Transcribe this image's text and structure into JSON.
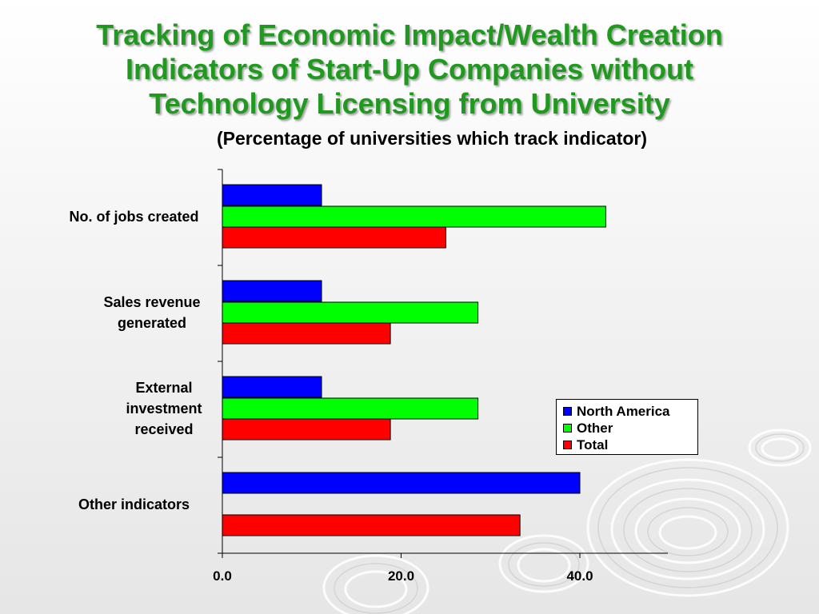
{
  "title_lines": [
    "Tracking of Economic Impact/Wealth Creation",
    "Indicators of Start-Up Companies without",
    "Technology Licensing from University"
  ],
  "subtitle": "(Percentage of universities which track indicator)",
  "colors": {
    "title": "#1f9a1f",
    "north_america": "#0000ff",
    "other": "#00ff00",
    "total": "#ff0000"
  },
  "chart_data": {
    "type": "bar",
    "orientation": "horizontal",
    "categories": [
      "No. of jobs created",
      "Sales revenue generated",
      "External investment received",
      "Other indicators"
    ],
    "category_label_lines": [
      [
        "No. of jobs created"
      ],
      [
        "Sales revenue",
        "generated"
      ],
      [
        "External",
        "investment",
        "received"
      ],
      [
        "Other indicators"
      ]
    ],
    "series": [
      {
        "name": "North America",
        "color": "#0000ff",
        "values": [
          11.1,
          11.1,
          11.1,
          40.0
        ]
      },
      {
        "name": "Other",
        "color": "#00ff00",
        "values": [
          42.9,
          28.6,
          28.6,
          null
        ]
      },
      {
        "name": "Total",
        "color": "#ff0000",
        "values": [
          25.0,
          18.8,
          18.8,
          33.3
        ]
      }
    ],
    "xlim": [
      0,
      50
    ],
    "xticks": [
      0,
      20,
      40
    ],
    "xtick_labels": [
      "0.0",
      "20.0",
      "40.0"
    ],
    "legend": "right-middle",
    "grid": false
  }
}
